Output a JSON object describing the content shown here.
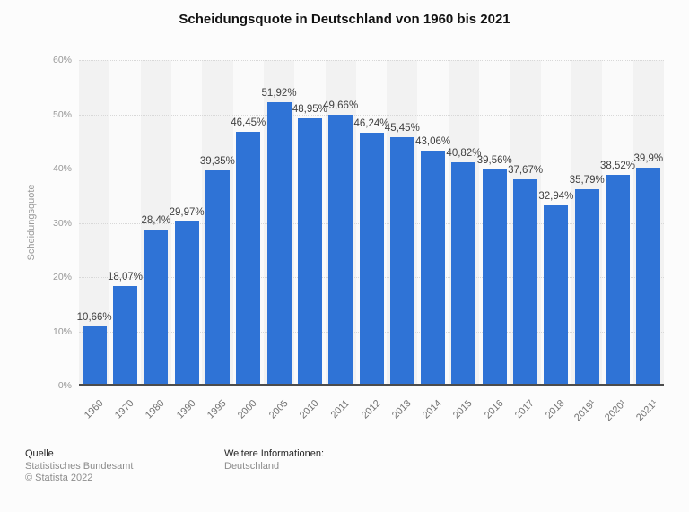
{
  "header": {
    "title": "Scheidungsquote in Deutschland von 1960 bis 2021"
  },
  "chart_data": {
    "type": "bar",
    "title": "Scheidungsquote in Deutschland von 1960 bis 2021",
    "categories": [
      "1960",
      "1970",
      "1980",
      "1990",
      "1995",
      "2000",
      "2005",
      "2010",
      "2011",
      "2012",
      "2013",
      "2014",
      "2015",
      "2016",
      "2017",
      "2018",
      "2019¹",
      "2020¹",
      "2021¹"
    ],
    "values": [
      10.66,
      18.07,
      28.4,
      29.97,
      39.35,
      46.45,
      51.92,
      48.95,
      49.66,
      46.24,
      45.45,
      43.06,
      40.82,
      39.56,
      37.67,
      32.94,
      35.79,
      38.52,
      39.9
    ],
    "value_labels": [
      "10,66%",
      "18,07%",
      "28,4%",
      "29,97%",
      "39,35%",
      "46,45%",
      "51,92%",
      "48,95%",
      "49,66%",
      "46,24%",
      "45,45%",
      "43,06%",
      "40,82%",
      "39,56%",
      "37,67%",
      "32,94%",
      "35,79%",
      "38,52%",
      "39,9%"
    ],
    "xlabel": "",
    "ylabel": "Scheidungsquote",
    "ylim": [
      0,
      60
    ],
    "ytick_labels": [
      "0%",
      "10%",
      "20%",
      "30%",
      "40%",
      "50%",
      "60%"
    ],
    "grid": "horizontal-dotted",
    "legend": "none",
    "bar_color": "#2f73d6",
    "stripe_colors": [
      "#f2f2f2",
      "#fafafa"
    ],
    "axis_line_color": "#4c4c4c"
  },
  "footer": {
    "source_label": "Quelle",
    "source_lines": [
      "Statistisches Bundesamt",
      "© Statista 2022"
    ],
    "info_label": "Weitere Informationen:",
    "info_lines": [
      "Deutschland"
    ]
  }
}
